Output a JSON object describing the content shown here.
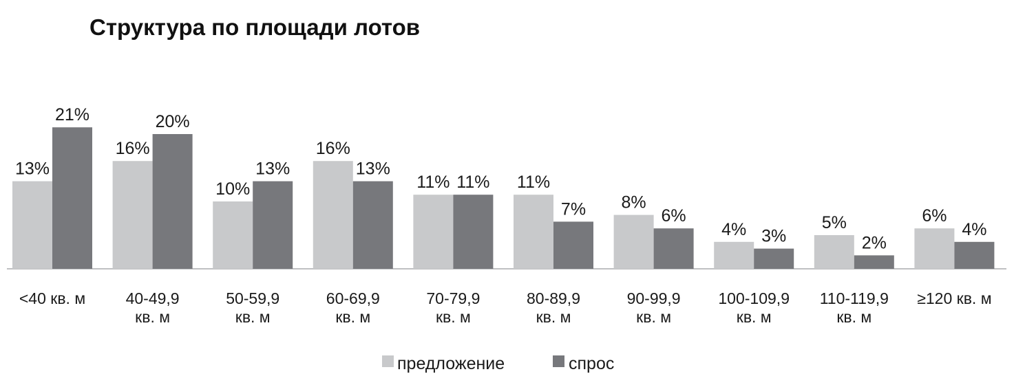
{
  "chart_data": {
    "type": "bar",
    "title": "Структура по площади лотов",
    "categories": [
      [
        "<40 кв. м"
      ],
      [
        "40-49,9",
        "кв. м"
      ],
      [
        "50-59,9",
        "кв. м"
      ],
      [
        "60-69,9",
        "кв. м"
      ],
      [
        "70-79,9",
        "кв. м"
      ],
      [
        "80-89,9",
        "кв. м"
      ],
      [
        "90-99,9",
        "кв. м"
      ],
      [
        "100-109,9",
        "кв. м"
      ],
      [
        "110-119,9",
        "кв. м"
      ],
      [
        "≥120 кв. м"
      ]
    ],
    "series": [
      {
        "name": "предложение",
        "color": "#c8c9cb",
        "values": [
          13,
          16,
          10,
          16,
          11,
          11,
          8,
          4,
          5,
          6
        ],
        "labels": [
          "13%",
          "16%",
          "10%",
          "16%",
          "11%",
          "11%",
          "8%",
          "4%",
          "5%",
          "6%"
        ]
      },
      {
        "name": "спрос",
        "color": "#77787c",
        "values": [
          21,
          20,
          13,
          13,
          11,
          7,
          6,
          3,
          2,
          4
        ],
        "labels": [
          "21%",
          "20%",
          "13%",
          "13%",
          "11%",
          "7%",
          "6%",
          "3%",
          "2%",
          "4%"
        ]
      }
    ],
    "xlabel": "",
    "ylabel": "",
    "ylim": [
      0,
      21
    ],
    "grid": false,
    "legend": "bottom-center",
    "baseline_color": "#bfc0c2"
  }
}
